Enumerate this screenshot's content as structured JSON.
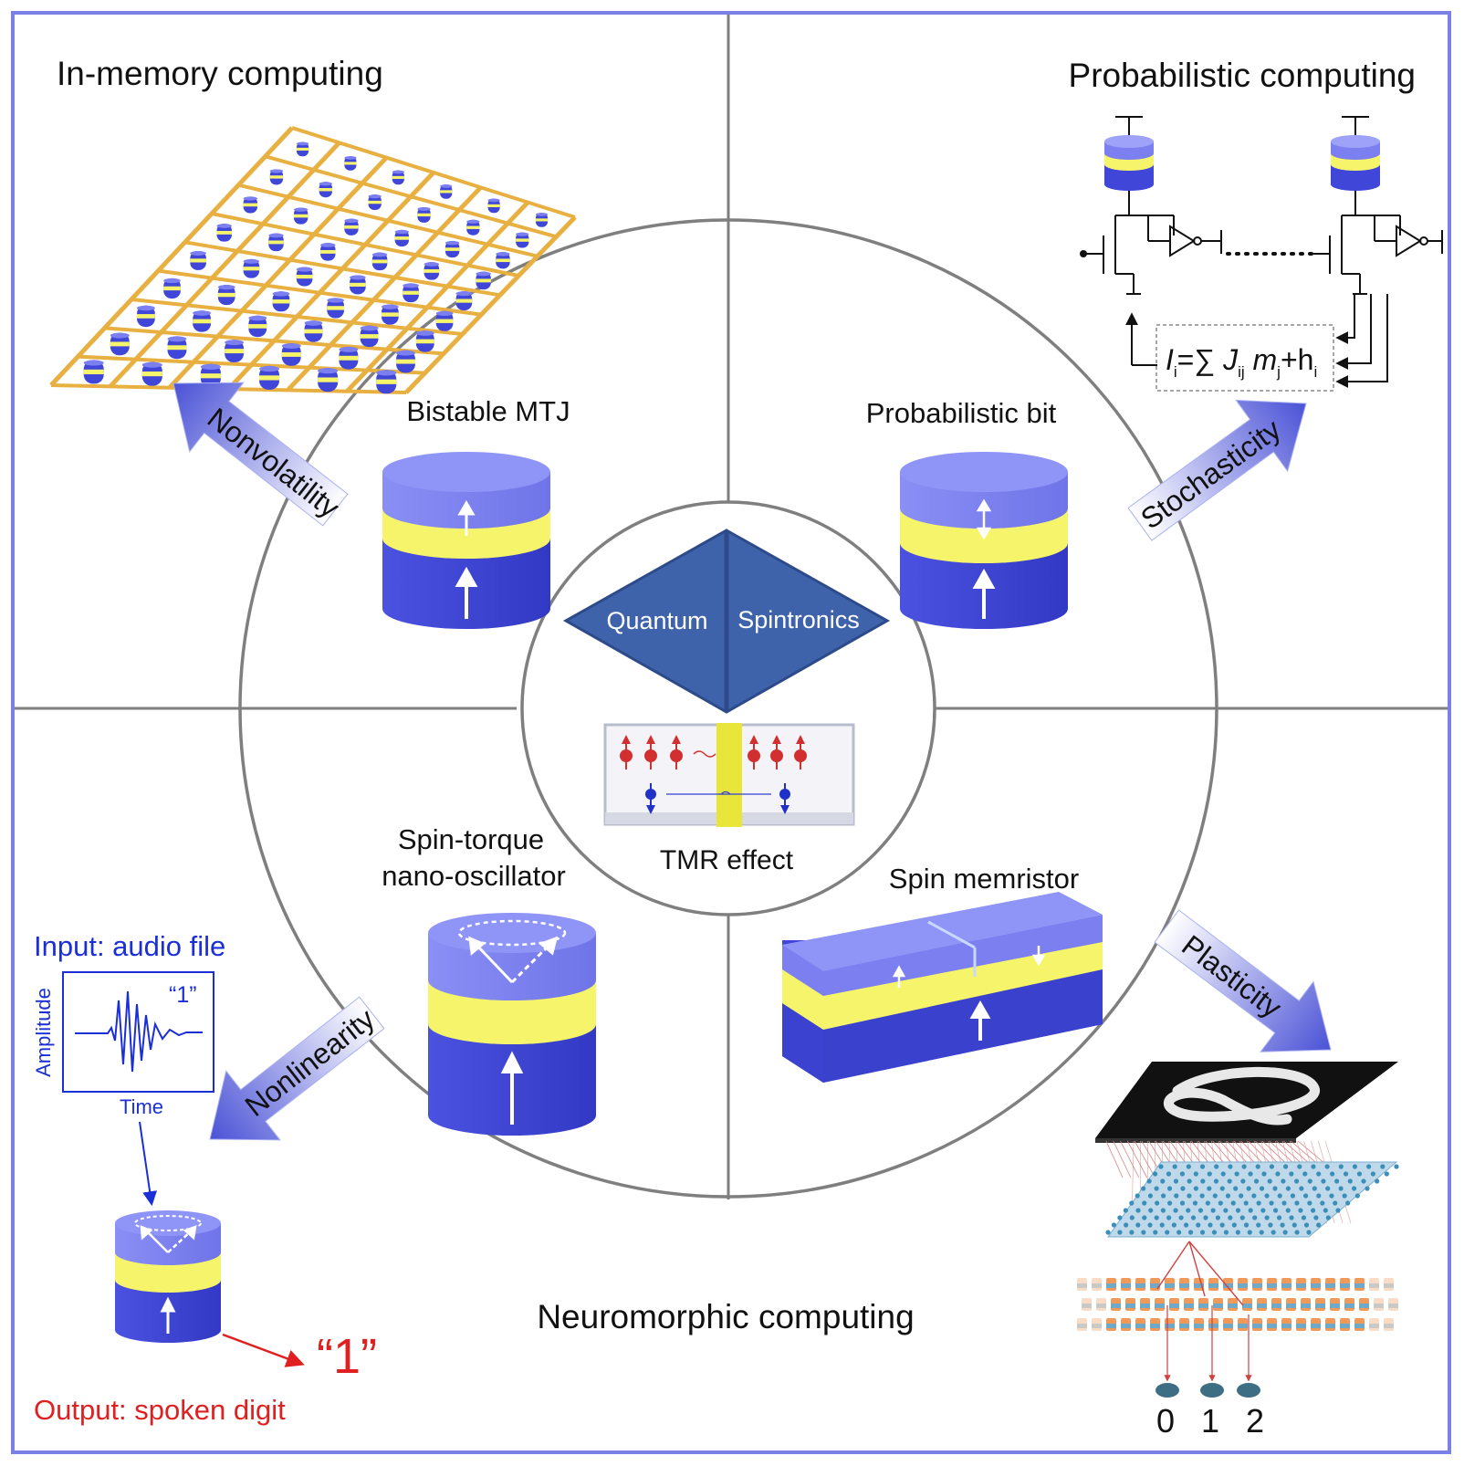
{
  "colors": {
    "frame": "#7a80e6",
    "divider": "#7f7f7f",
    "layer_top": "#7b7ff0",
    "layer_barrier": "#f6f46a",
    "layer_bottom": "#3f46d8",
    "diamond": "#3f63ab",
    "diamond_edge": "#2d4a8a",
    "blue_text": "#1a2fd6",
    "red_text": "#e02020",
    "wire": "#e8b040"
  },
  "quadrants": {
    "top_left": "In-memory computing",
    "top_right": "Probabilistic computing",
    "bottom": "Neuromorphic computing"
  },
  "devices": {
    "bistable": "Bistable MTJ",
    "pbit": "Probabilistic bit",
    "sto_line1": "Spin-torque",
    "sto_line2": "nano-oscillator",
    "memristor": "Spin memristor"
  },
  "center": {
    "left": "Quantum",
    "right": "Spintronics",
    "effect": "TMR effect"
  },
  "arrows": {
    "nonvolatility": "Nonvolatility",
    "stochasticity": "Stochasticity",
    "nonlinearity": "Nonlinearity",
    "plasticity": "Plasticity"
  },
  "audio": {
    "input": "Input: audio file",
    "ylabel": "Amplitude",
    "xlabel": "Time",
    "digit_label": "“1”",
    "output_digit": "“1”",
    "output": "Output: spoken digit"
  },
  "pbit_eq": {
    "I": "I",
    "i1": "i",
    "eq": "=∑ ",
    "J": "J",
    "ij": "ij",
    "m": " m",
    "j": "j",
    "plus": "+h",
    "i2": "i"
  },
  "classes": [
    "0",
    "1",
    "2"
  ]
}
